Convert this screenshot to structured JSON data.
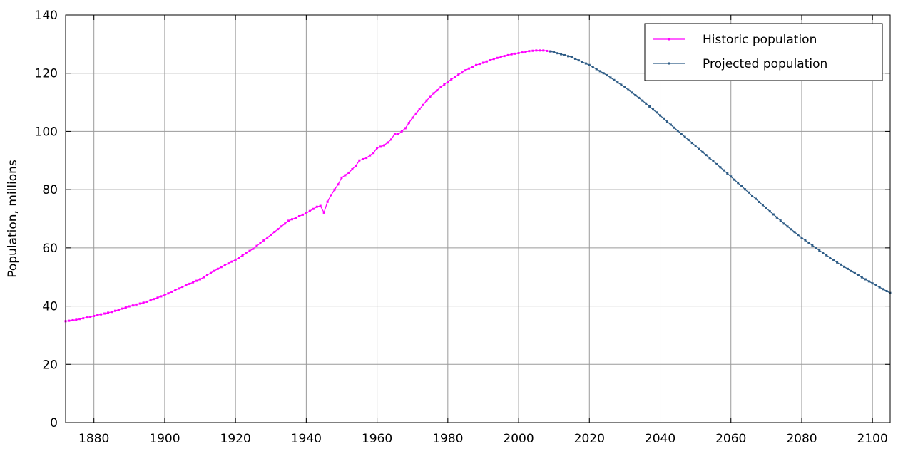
{
  "chart_data": {
    "type": "line",
    "title": "",
    "xlabel": "",
    "ylabel": "Population, millions",
    "xlim": [
      1872,
      2105
    ],
    "ylim": [
      0,
      140
    ],
    "x_ticks": [
      1880,
      1900,
      1920,
      1940,
      1960,
      1980,
      2000,
      2020,
      2040,
      2060,
      2080,
      2100
    ],
    "y_ticks": [
      0,
      20,
      40,
      60,
      80,
      100,
      120,
      140
    ],
    "grid": true,
    "legend_position": "top-right",
    "series": [
      {
        "name": "Historic population",
        "color": "#ff00ff",
        "marker": "square",
        "points": [
          [
            1872,
            34.8
          ],
          [
            1875,
            35.3
          ],
          [
            1880,
            36.6
          ],
          [
            1885,
            38.0
          ],
          [
            1890,
            39.9
          ],
          [
            1895,
            41.5
          ],
          [
            1900,
            43.8
          ],
          [
            1905,
            46.6
          ],
          [
            1910,
            49.2
          ],
          [
            1915,
            52.8
          ],
          [
            1920,
            55.9
          ],
          [
            1925,
            59.7
          ],
          [
            1930,
            64.5
          ],
          [
            1935,
            69.3
          ],
          [
            1940,
            71.9
          ],
          [
            1943,
            74.1
          ],
          [
            1944,
            74.4
          ],
          [
            1945,
            72.1
          ],
          [
            1946,
            75.8
          ],
          [
            1947,
            78.1
          ],
          [
            1948,
            80.0
          ],
          [
            1949,
            81.8
          ],
          [
            1950,
            84.1
          ],
          [
            1952,
            85.8
          ],
          [
            1954,
            88.2
          ],
          [
            1955,
            90.0
          ],
          [
            1957,
            90.9
          ],
          [
            1959,
            92.6
          ],
          [
            1960,
            94.3
          ],
          [
            1962,
            95.2
          ],
          [
            1964,
            97.2
          ],
          [
            1965,
            99.2
          ],
          [
            1966,
            99.0
          ],
          [
            1968,
            101.1
          ],
          [
            1970,
            104.7
          ],
          [
            1972,
            107.6
          ],
          [
            1974,
            110.6
          ],
          [
            1976,
            113.1
          ],
          [
            1978,
            115.2
          ],
          [
            1980,
            117.1
          ],
          [
            1983,
            119.5
          ],
          [
            1985,
            121.0
          ],
          [
            1988,
            122.8
          ],
          [
            1990,
            123.6
          ],
          [
            1993,
            124.9
          ],
          [
            1995,
            125.6
          ],
          [
            1998,
            126.5
          ],
          [
            2000,
            126.9
          ],
          [
            2003,
            127.6
          ],
          [
            2005,
            127.8
          ],
          [
            2007,
            127.8
          ],
          [
            2009,
            127.5
          ]
        ]
      },
      {
        "name": "Projected population",
        "color": "#2e5c86",
        "marker": "square",
        "points": [
          [
            2009,
            127.5
          ],
          [
            2010,
            127.2
          ],
          [
            2015,
            125.5
          ],
          [
            2020,
            122.8
          ],
          [
            2025,
            119.3
          ],
          [
            2030,
            115.2
          ],
          [
            2035,
            110.6
          ],
          [
            2040,
            105.5
          ],
          [
            2045,
            100.2
          ],
          [
            2050,
            95.0
          ],
          [
            2055,
            89.8
          ],
          [
            2060,
            84.5
          ],
          [
            2065,
            79.0
          ],
          [
            2070,
            73.6
          ],
          [
            2075,
            68.3
          ],
          [
            2080,
            63.5
          ],
          [
            2085,
            59.1
          ],
          [
            2090,
            55.0
          ],
          [
            2095,
            51.3
          ],
          [
            2100,
            47.8
          ],
          [
            2105,
            44.5
          ]
        ]
      }
    ]
  }
}
